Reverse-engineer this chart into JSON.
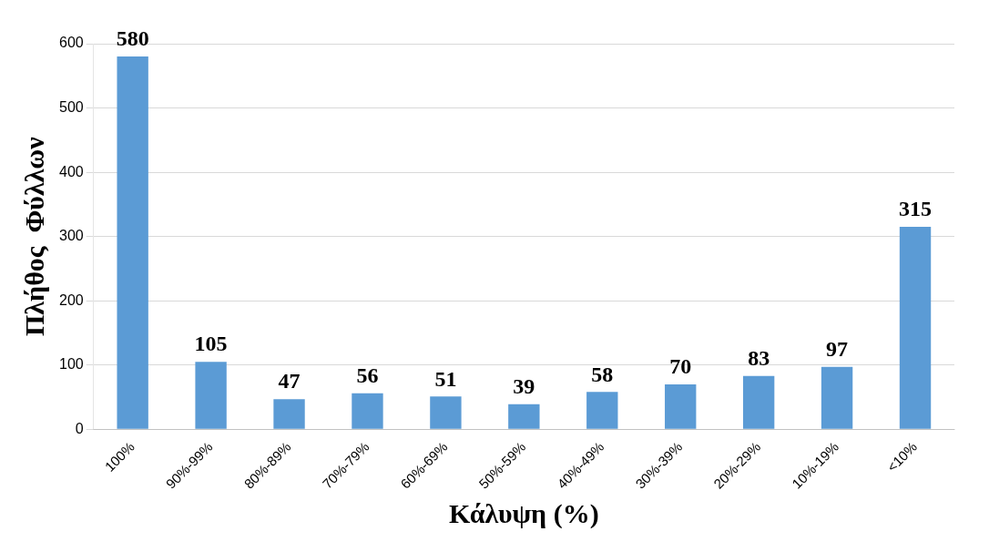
{
  "chart_data": {
    "type": "bar",
    "xlabel": "Κάλυψη (%)",
    "ylabel": "Πλήθος  Φύλλων",
    "categories": [
      "100%",
      "90%-99%",
      "80%-89%",
      "70%-79%",
      "60%-69%",
      "50%-59%",
      "40%-49%",
      "30%-39%",
      "20%-29%",
      "10%-19%",
      "<10%"
    ],
    "values": [
      580,
      105,
      47,
      56,
      51,
      39,
      58,
      70,
      83,
      97,
      315
    ],
    "color": "#5b9bd5",
    "ylim": [
      0,
      600
    ],
    "yticks": [
      0,
      100,
      200,
      300,
      400,
      500,
      600
    ],
    "grid": "y",
    "data_labels": true
  }
}
